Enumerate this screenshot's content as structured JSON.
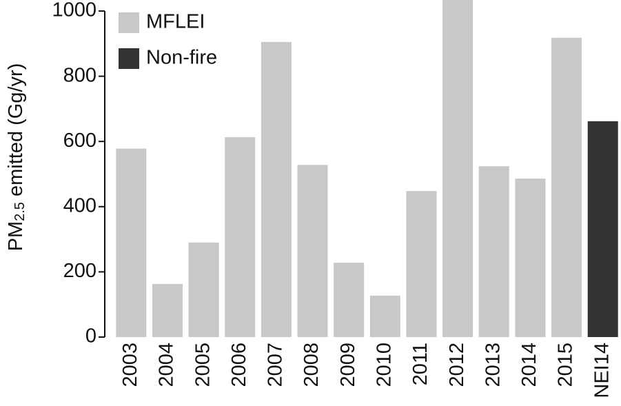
{
  "chart_data": {
    "type": "bar",
    "y_label": [
      "PM",
      "2.5",
      " emitted (Gg/yr)"
    ],
    "categories": [
      "2003",
      "2004",
      "2005",
      "2006",
      "2007",
      "2008",
      "2009",
      "2010",
      "2011",
      "2012",
      "2013",
      "2014",
      "2015",
      "NEI14"
    ],
    "series": [
      {
        "name": "MFLEI",
        "color": "#c8c8c8",
        "values": [
          578,
          163,
          290,
          613,
          905,
          528,
          228,
          127,
          448,
          1050,
          524,
          486,
          918,
          null
        ]
      },
      {
        "name": "Non-fire",
        "color": "#333333",
        "values": [
          null,
          null,
          null,
          null,
          null,
          null,
          null,
          null,
          null,
          null,
          null,
          null,
          null,
          662
        ]
      }
    ],
    "ylim": [
      0,
      1000
    ],
    "yticks": [
      0,
      200,
      400,
      600,
      800,
      1000
    ],
    "grid": false,
    "legend": "upper left"
  }
}
